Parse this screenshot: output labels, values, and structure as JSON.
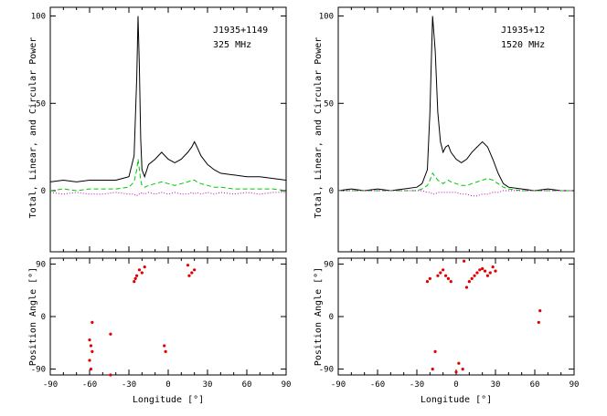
{
  "chart_data": [
    {
      "type": "line",
      "panel": "profile",
      "annotation": [
        "J1935+1149",
        "325 MHz"
      ],
      "ylabel": "Total, Linear, and Circular Power",
      "xlabel": "",
      "xlim": [
        -90,
        90
      ],
      "ylim": [
        -35,
        105
      ],
      "x_ticks": [
        "-90",
        "-60",
        "-30",
        "0",
        "30",
        "60",
        "90"
      ],
      "y_ticks": [
        "0",
        "50",
        "100"
      ],
      "x": [
        -90,
        -80,
        -70,
        -60,
        -50,
        -40,
        -30,
        -26,
        -24,
        -23,
        -22,
        -21,
        -20,
        -18,
        -15,
        -10,
        -5,
        0,
        5,
        10,
        15,
        18,
        20,
        22,
        25,
        30,
        35,
        40,
        50,
        60,
        70,
        80,
        90
      ],
      "series": [
        {
          "role": "total",
          "color": "#000000",
          "dash": "solid",
          "values": [
            5,
            6,
            5,
            6,
            6,
            6,
            8,
            20,
            65,
            100,
            70,
            30,
            12,
            8,
            15,
            18,
            22,
            18,
            16,
            18,
            22,
            25,
            28,
            25,
            20,
            15,
            12,
            10,
            9,
            8,
            8,
            7,
            6
          ]
        },
        {
          "role": "linear",
          "color": "#00c800",
          "dash": "dashed",
          "values": [
            0,
            1,
            0,
            1,
            1,
            1,
            2,
            5,
            12,
            18,
            12,
            6,
            3,
            2,
            3,
            4,
            5,
            4,
            3,
            4,
            5,
            6,
            6,
            5,
            4,
            3,
            2,
            2,
            1,
            1,
            1,
            1,
            0
          ]
        },
        {
          "role": "circular",
          "color": "#c000c0",
          "dash": "dotted",
          "values": [
            -1,
            -2,
            -1,
            -2,
            -2,
            -1,
            -2,
            -2,
            -3,
            -2,
            -2,
            -2,
            -1,
            -2,
            -1,
            -2,
            -1,
            -2,
            -1,
            -2,
            -2,
            -1,
            -2,
            -1,
            -2,
            -1,
            -2,
            -1,
            -2,
            -1,
            -2,
            -1,
            -1
          ]
        }
      ]
    },
    {
      "type": "line",
      "panel": "profile",
      "annotation": [
        "J1935+12",
        "1520 MHz"
      ],
      "ylabel": "Total, Linear, and Circular Power",
      "xlabel": "",
      "xlim": [
        -90,
        90
      ],
      "ylim": [
        -35,
        105
      ],
      "x_ticks": [
        "-90",
        "-60",
        "-30",
        "0",
        "30",
        "60",
        "90"
      ],
      "y_ticks": [
        "0",
        "50",
        "100"
      ],
      "x": [
        -90,
        -80,
        -70,
        -60,
        -50,
        -40,
        -30,
        -26,
        -22,
        -20,
        -18,
        -16,
        -14,
        -12,
        -10,
        -8,
        -6,
        -4,
        0,
        4,
        8,
        12,
        16,
        20,
        24,
        28,
        32,
        36,
        40,
        50,
        60,
        70,
        80,
        90
      ],
      "series": [
        {
          "role": "total",
          "color": "#000000",
          "dash": "solid",
          "values": [
            0,
            1,
            0,
            1,
            0,
            1,
            2,
            4,
            12,
            45,
            100,
            80,
            45,
            28,
            22,
            25,
            26,
            22,
            18,
            16,
            18,
            22,
            25,
            28,
            25,
            18,
            10,
            4,
            2,
            1,
            0,
            1,
            0,
            0
          ]
        },
        {
          "role": "linear",
          "color": "#00c800",
          "dash": "dashed",
          "values": [
            0,
            0,
            0,
            0,
            0,
            0,
            0,
            1,
            3,
            6,
            10,
            8,
            6,
            5,
            4,
            5,
            6,
            5,
            4,
            3,
            3,
            4,
            5,
            6,
            7,
            6,
            4,
            2,
            1,
            0,
            0,
            0,
            0,
            0
          ]
        },
        {
          "role": "circular",
          "color": "#c000c0",
          "dash": "dotted",
          "values": [
            0,
            0,
            0,
            0,
            0,
            0,
            0,
            0,
            -1,
            -1,
            -2,
            -2,
            -1,
            -1,
            -1,
            -1,
            -1,
            -1,
            -1,
            -2,
            -2,
            -3,
            -3,
            -2,
            -2,
            -1,
            -1,
            0,
            0,
            0,
            0,
            0,
            0,
            0
          ]
        }
      ]
    },
    {
      "type": "scatter",
      "panel": "position-angle",
      "ylabel": "Position Angle [°]",
      "xlabel": "Longitude [°]",
      "xlim": [
        -90,
        90
      ],
      "ylim": [
        -100,
        100
      ],
      "x_ticks": [
        "-90",
        "-60",
        "-30",
        "0",
        "30",
        "60",
        "90"
      ],
      "y_ticks": [
        "-90",
        "0",
        "90"
      ],
      "color": "#e00000",
      "x": [
        -60,
        -60,
        -59,
        -59,
        -58,
        -58,
        -44,
        -44,
        -26,
        -25,
        -24,
        -22,
        -20,
        -18,
        -3,
        -2,
        15,
        16,
        18,
        20
      ],
      "values": [
        -40,
        -75,
        -50,
        -90,
        -10,
        -60,
        -30,
        -100,
        60,
        65,
        70,
        80,
        75,
        85,
        -50,
        -60,
        88,
        70,
        75,
        80
      ]
    },
    {
      "type": "scatter",
      "panel": "position-angle",
      "ylabel": "Position Angle [°]",
      "xlabel": "Longitude [°]",
      "xlim": [
        -90,
        90
      ],
      "ylim": [
        -100,
        100
      ],
      "x_ticks": [
        "-90",
        "-60",
        "-30",
        "0",
        "30",
        "60",
        "90"
      ],
      "y_ticks": [
        "-90",
        "0",
        "90"
      ],
      "color": "#e00000",
      "x": [
        -22,
        -20,
        -18,
        -16,
        -14,
        -12,
        -10,
        -8,
        -6,
        -4,
        0,
        2,
        5,
        6,
        8,
        10,
        12,
        14,
        16,
        18,
        20,
        22,
        24,
        26,
        28,
        30,
        63,
        64
      ],
      "values": [
        60,
        65,
        -90,
        -60,
        70,
        75,
        80,
        70,
        65,
        60,
        -95,
        -80,
        -90,
        95,
        50,
        60,
        65,
        70,
        75,
        80,
        82,
        78,
        70,
        75,
        85,
        78,
        -10,
        10
      ]
    }
  ]
}
